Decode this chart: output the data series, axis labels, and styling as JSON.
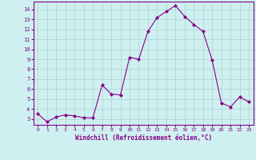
{
  "hours": [
    0,
    1,
    2,
    3,
    4,
    5,
    6,
    7,
    8,
    9,
    10,
    11,
    12,
    13,
    14,
    15,
    16,
    17,
    18,
    19,
    20,
    21,
    22,
    23
  ],
  "values": [
    3.5,
    2.7,
    3.2,
    3.4,
    3.3,
    3.1,
    3.1,
    6.4,
    5.5,
    5.4,
    9.2,
    9.0,
    11.8,
    13.2,
    13.8,
    14.4,
    13.3,
    12.5,
    11.8,
    8.9,
    4.6,
    4.2,
    5.2,
    4.7
  ],
  "line_color": "#880088",
  "marker": "D",
  "marker_size": 2.0,
  "bg_color": "#cff0f0",
  "grid_color": "#b0d8d8",
  "xlabel": "Windchill (Refroidissement éolien,°C)",
  "xlabel_color": "#880088",
  "tick_color": "#880088",
  "ylim": [
    2.4,
    14.8
  ],
  "xlim": [
    -0.5,
    23.5
  ],
  "yticks": [
    3,
    4,
    5,
    6,
    7,
    8,
    9,
    10,
    11,
    12,
    13,
    14
  ],
  "xticks": [
    0,
    1,
    2,
    3,
    4,
    5,
    6,
    7,
    8,
    9,
    10,
    11,
    12,
    13,
    14,
    15,
    16,
    17,
    18,
    19,
    20,
    21,
    22,
    23
  ]
}
